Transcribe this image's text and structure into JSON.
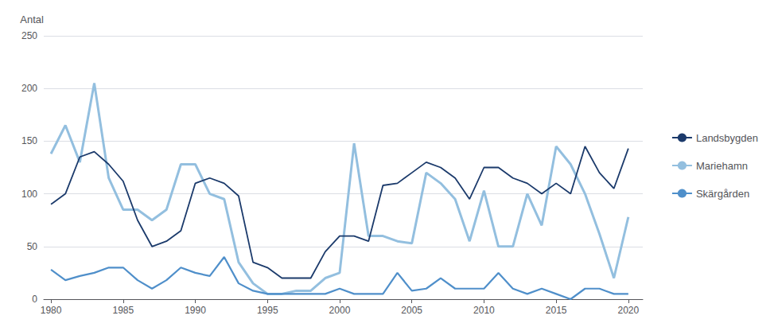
{
  "chart_data": {
    "type": "line",
    "ylabel": "Antal",
    "x": [
      1980,
      1981,
      1982,
      1983,
      1984,
      1985,
      1986,
      1987,
      1988,
      1989,
      1990,
      1991,
      1992,
      1993,
      1994,
      1995,
      1996,
      1997,
      1998,
      1999,
      2000,
      2001,
      2002,
      2003,
      2004,
      2005,
      2006,
      2007,
      2008,
      2009,
      2010,
      2011,
      2012,
      2013,
      2014,
      2015,
      2016,
      2017,
      2018,
      2019,
      2020
    ],
    "series": [
      {
        "name": "Landsbygden",
        "color": "#1b3a6b",
        "values": [
          90,
          100,
          135,
          140,
          128,
          112,
          75,
          50,
          55,
          65,
          110,
          115,
          110,
          98,
          35,
          30,
          20,
          20,
          20,
          45,
          60,
          60,
          55,
          108,
          110,
          120,
          130,
          125,
          115,
          95,
          125,
          125,
          115,
          110,
          100,
          110,
          100,
          145,
          120,
          105,
          143
        ]
      },
      {
        "name": "Mariehamn",
        "color": "#93bfdf",
        "values": [
          138,
          165,
          130,
          205,
          115,
          85,
          85,
          75,
          85,
          128,
          128,
          100,
          95,
          35,
          15,
          5,
          5,
          8,
          8,
          20,
          25,
          148,
          60,
          60,
          55,
          53,
          120,
          110,
          95,
          55,
          103,
          50,
          50,
          100,
          70,
          145,
          128,
          100,
          62,
          20,
          78
        ]
      },
      {
        "name": "Skärgården",
        "color": "#4f8fca",
        "values": [
          28,
          18,
          22,
          25,
          30,
          30,
          18,
          10,
          18,
          30,
          25,
          22,
          40,
          15,
          8,
          5,
          5,
          5,
          5,
          5,
          10,
          5,
          5,
          5,
          25,
          8,
          10,
          20,
          10,
          10,
          10,
          25,
          10,
          5,
          10,
          5,
          0,
          10,
          10,
          5,
          5
        ]
      }
    ],
    "xlim": [
      1979.5,
      2021
    ],
    "xticks": [
      1980,
      1985,
      1990,
      1995,
      2000,
      2005,
      2010,
      2015,
      2020
    ],
    "ylim": [
      0,
      250
    ],
    "yticks": [
      0,
      50,
      100,
      150,
      200,
      250
    ],
    "grid": true,
    "legend": "right"
  }
}
